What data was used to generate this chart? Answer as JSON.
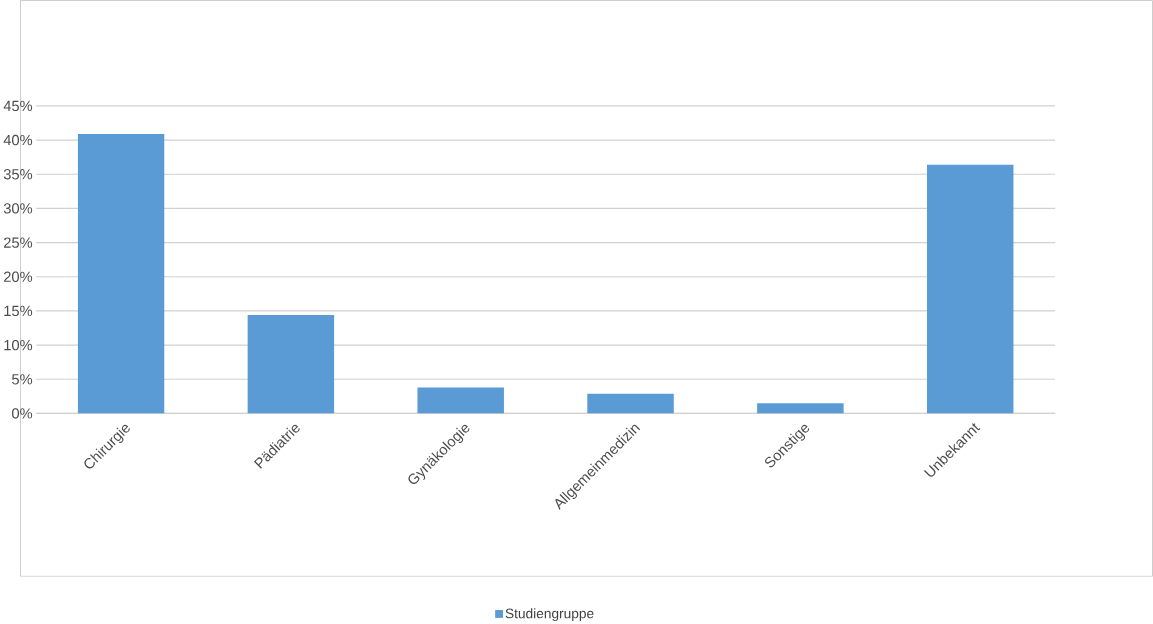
{
  "chart_data": {
    "type": "bar",
    "categories": [
      "Chirurgie",
      "Pädiatrie",
      "Gynäkologie",
      "Allgemeinmedizin",
      "Sonstige",
      "Unbekannt"
    ],
    "series": [
      {
        "name": "Studiengruppe",
        "color": "#5b9bd5",
        "values": [
          40.9,
          14.4,
          3.8,
          2.9,
          1.5,
          36.4
        ]
      }
    ],
    "ylim": [
      0,
      45
    ],
    "yticks": [
      {
        "value": 0,
        "label": "0%"
      },
      {
        "value": 5,
        "label": "5%"
      },
      {
        "value": 10,
        "label": "10%"
      },
      {
        "value": 15,
        "label": "15%"
      },
      {
        "value": 20,
        "label": "20%"
      },
      {
        "value": 25,
        "label": "25%"
      },
      {
        "value": 30,
        "label": "30%"
      },
      {
        "value": 35,
        "label": "35%"
      },
      {
        "value": 40,
        "label": "40%"
      },
      {
        "value": 45,
        "label": "45%"
      }
    ],
    "grid": "y",
    "legend": "bottom"
  }
}
